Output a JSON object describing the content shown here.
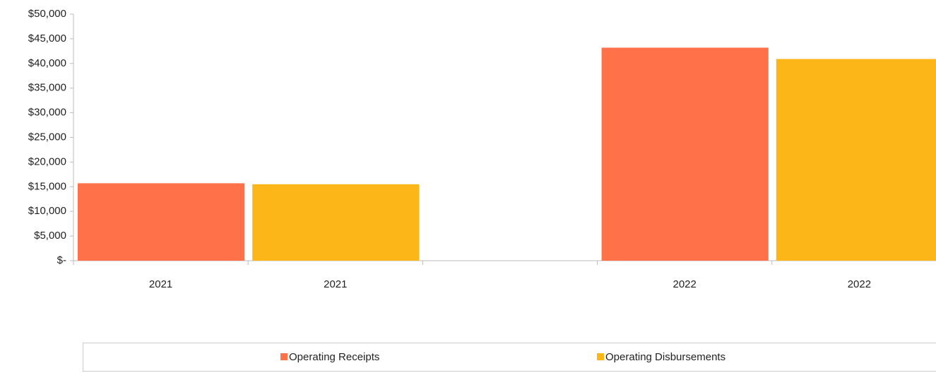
{
  "chart_data": {
    "type": "bar",
    "categories": [
      "2021",
      "2021",
      null,
      "2022",
      "2022"
    ],
    "series": [
      {
        "name": "Operating Receipts",
        "color": "#ff7149",
        "values": [
          15700,
          null,
          null,
          43200,
          null
        ]
      },
      {
        "name": "Operating Disbursements",
        "color": "#fdb618",
        "values": [
          null,
          15500,
          null,
          null,
          40900
        ]
      }
    ],
    "ylim": [
      0,
      50000
    ],
    "yticks": [
      {
        "value": 0,
        "label": "$-"
      },
      {
        "value": 5000,
        "label": "$5,000"
      },
      {
        "value": 10000,
        "label": "$10,000"
      },
      {
        "value": 15000,
        "label": "$15,000"
      },
      {
        "value": 20000,
        "label": "$20,000"
      },
      {
        "value": 25000,
        "label": "$25,000"
      },
      {
        "value": 30000,
        "label": "$30,000"
      },
      {
        "value": 35000,
        "label": "$35,000"
      },
      {
        "value": 40000,
        "label": "$40,000"
      },
      {
        "value": 45000,
        "label": "$45,000"
      },
      {
        "value": 50000,
        "label": "$50,000"
      }
    ],
    "grid": false,
    "legend": "bottom"
  }
}
